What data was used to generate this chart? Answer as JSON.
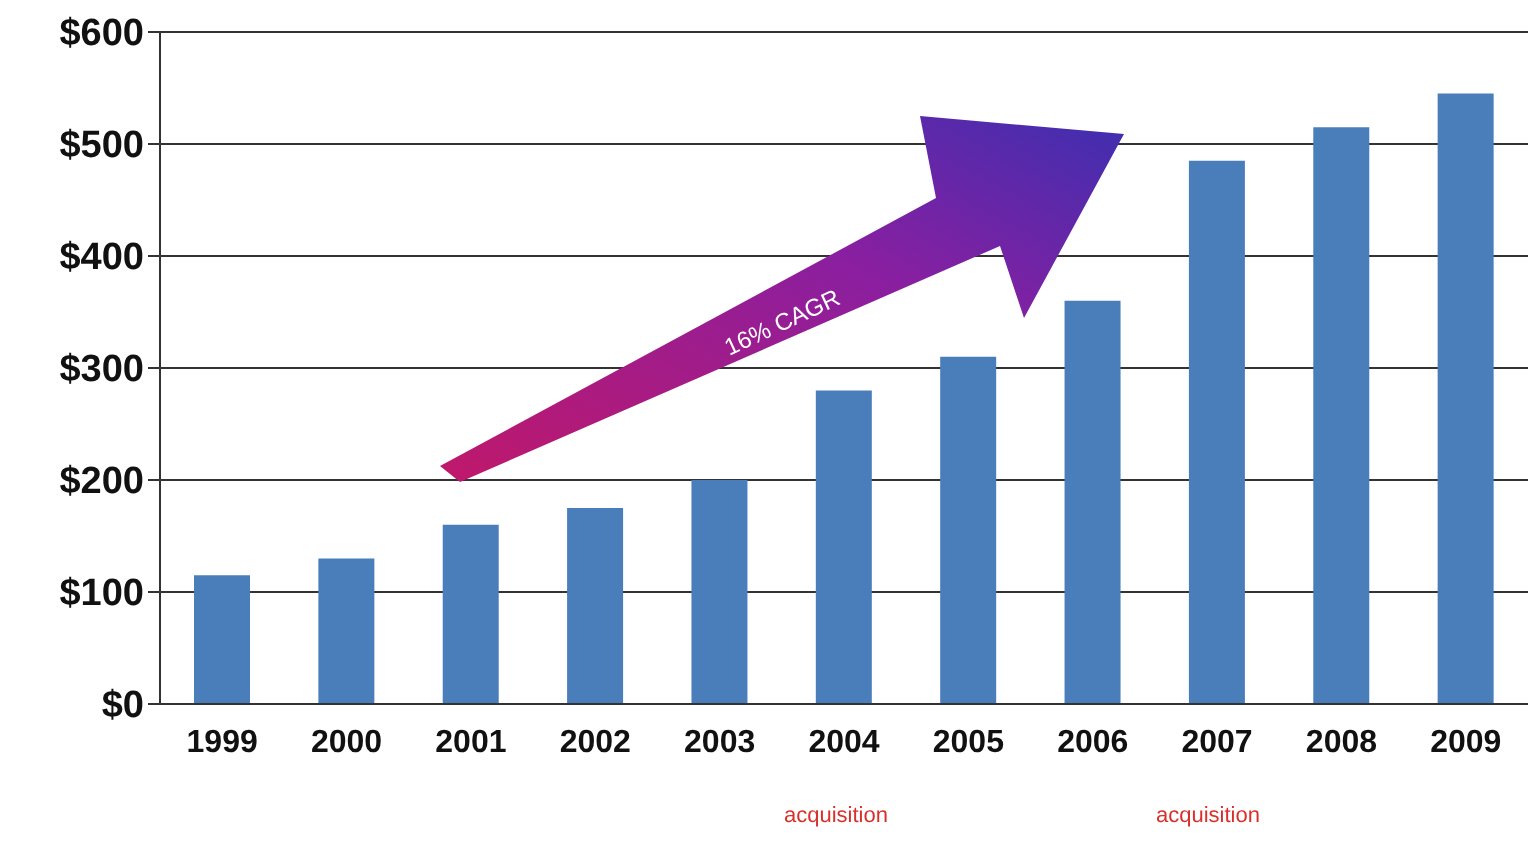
{
  "chart_data": {
    "type": "bar",
    "categories": [
      "1999",
      "2000",
      "2001",
      "2002",
      "2003",
      "2004",
      "2005",
      "2006",
      "2007",
      "2008",
      "2009"
    ],
    "values": [
      115,
      130,
      160,
      175,
      200,
      280,
      310,
      360,
      485,
      515,
      545
    ],
    "color": "#4a7ebb",
    "ylim": [
      0,
      600
    ],
    "yticks": [
      {
        "value": 0,
        "label": "$0"
      },
      {
        "value": 100,
        "label": "$100"
      },
      {
        "value": 200,
        "label": "$200"
      },
      {
        "value": 300,
        "label": "$300"
      },
      {
        "value": 400,
        "label": "$400"
      },
      {
        "value": 500,
        "label": "$500"
      },
      {
        "value": 600,
        "label": "$600"
      }
    ],
    "grid": "y",
    "annotations": [
      "16% CAGR",
      "acquisition",
      "acquisition"
    ]
  }
}
